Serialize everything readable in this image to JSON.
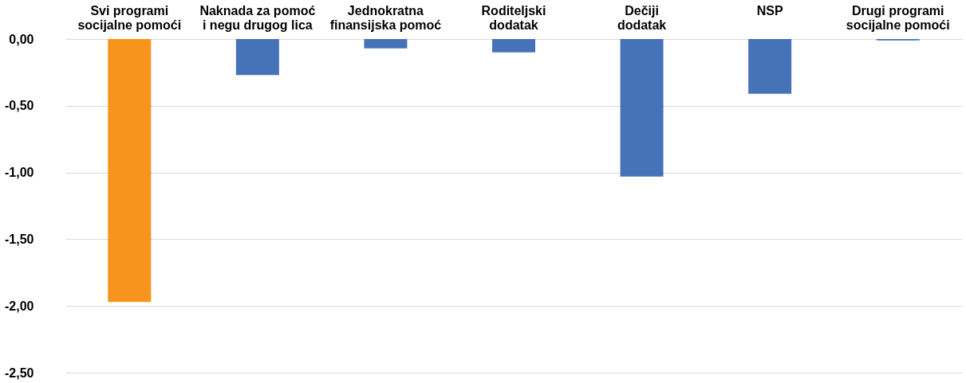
{
  "chart_data": {
    "type": "bar",
    "categories": [
      "Svi programi socijalne pomoći",
      "Naknada za pomoć i negu drugog lica",
      "Jednokratna finansijska pomoć",
      "Roditeljski dodatak",
      "Dečiji dodatak",
      "NSP",
      "Drugi programi socijalne pomoći"
    ],
    "values": [
      -1.97,
      -0.27,
      -0.07,
      -0.1,
      -1.03,
      -0.41,
      -0.01
    ],
    "colors": [
      "#f7941d",
      "#4672b8",
      "#4672b8",
      "#4672b8",
      "#4672b8",
      "#4672b8",
      "#4672b8"
    ],
    "ylim": [
      -2.5,
      0
    ],
    "yticks": [
      {
        "value": 0,
        "label": "0,00"
      },
      {
        "value": -0.5,
        "label": "-0,50"
      },
      {
        "value": -1,
        "label": "-1,00"
      },
      {
        "value": -1.5,
        "label": "-1,50"
      },
      {
        "value": -2,
        "label": "-2,00"
      },
      {
        "value": -2.5,
        "label": "-2,50"
      }
    ],
    "grid": "y"
  }
}
